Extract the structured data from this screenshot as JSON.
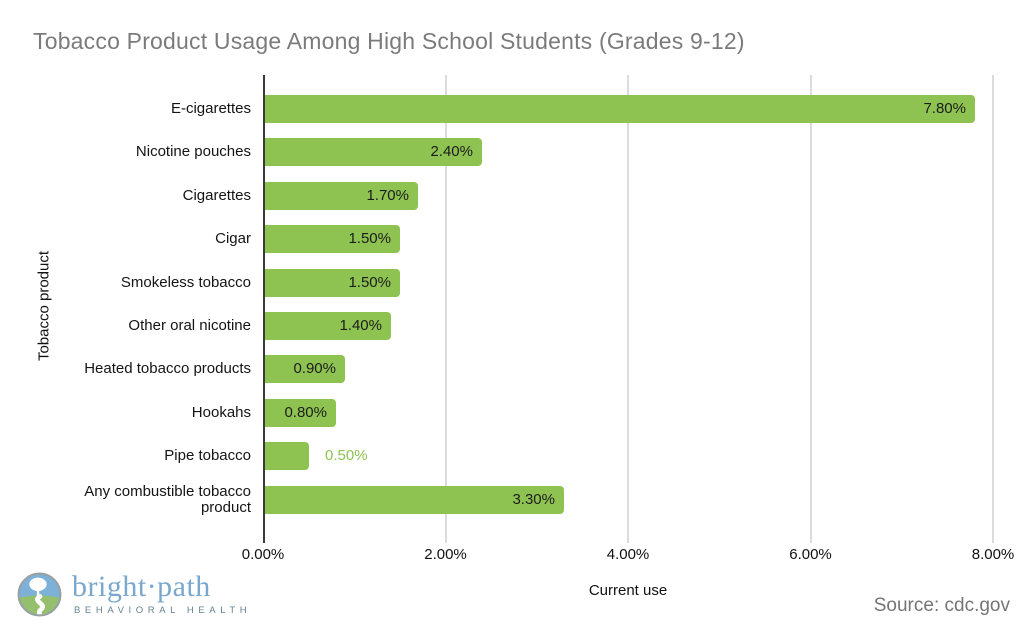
{
  "header": {
    "title": "Tobacco Product Usage Among High School Students (Grades 9-12)"
  },
  "footer": {
    "source": "Source: cdc.gov",
    "logo": {
      "name": "bright·path",
      "tagline": "BEHAVIORAL HEALTH"
    }
  },
  "colors": {
    "bar": "#8ec351",
    "title_text": "#7b7b7b",
    "grid": "#dcdcdc",
    "axis": "#3a3a3a",
    "value_label": "#1c1c1c",
    "value_label_outside": "#8ec351",
    "source_text": "#757575",
    "logo_blue": "#7aa7cd",
    "logo_tagline": "#67828f"
  },
  "chart_data": {
    "type": "bar",
    "orientation": "horizontal",
    "title": "Tobacco Product Usage Among High School Students (Grades 9-12)",
    "xlabel": "Current use",
    "ylabel": "Tobacco product",
    "xlim": [
      0,
      8
    ],
    "grid": "vertical",
    "legend": "none",
    "categories": [
      "E-cigarettes",
      "Nicotine pouches",
      "Cigarettes",
      "Cigar",
      "Smokeless tobacco",
      "Other oral nicotine",
      "Heated tobacco products",
      "Hookahs",
      "Pipe tobacco",
      "Any combustible tobacco product"
    ],
    "values": [
      7.8,
      2.4,
      1.7,
      1.5,
      1.5,
      1.4,
      0.9,
      0.8,
      0.5,
      3.3
    ],
    "value_labels": [
      "7.80%",
      "2.40%",
      "1.70%",
      "1.50%",
      "1.50%",
      "1.40%",
      "0.90%",
      "0.80%",
      "0.50%",
      "3.30%"
    ],
    "value_label_inside": [
      true,
      true,
      true,
      true,
      true,
      true,
      true,
      true,
      false,
      true
    ],
    "xticks": [
      {
        "value": 0,
        "label": "0.00%"
      },
      {
        "value": 2,
        "label": "2.00%"
      },
      {
        "value": 4,
        "label": "4.00%"
      },
      {
        "value": 6,
        "label": "6.00%"
      },
      {
        "value": 8,
        "label": "8.00%"
      }
    ]
  }
}
